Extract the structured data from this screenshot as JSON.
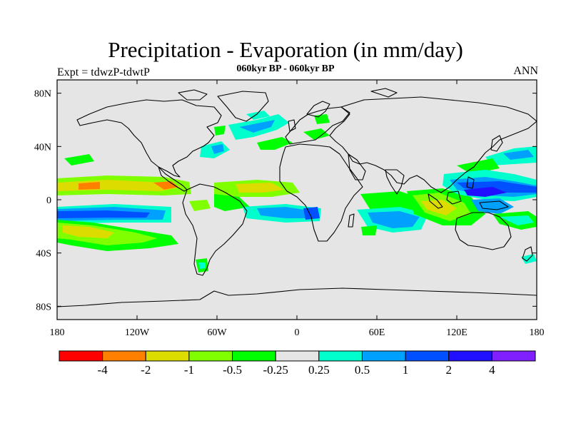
{
  "title": "Precipitation - Evaporation (in mm/day)",
  "subtitle": "060kyr BP - 060kyr BP",
  "left_string": "Expt = tdwzP-tdwtP",
  "right_string": "ANN",
  "map": {
    "projection": "cylindrical-equidistant",
    "lon_range": [
      -180,
      180
    ],
    "lat_range": [
      -90,
      90
    ],
    "background": "#e5e5e5",
    "coastline_color": "#000000"
  },
  "lat_ticks": [
    {
      "lat": 80,
      "label": "80N"
    },
    {
      "lat": 40,
      "label": "40N"
    },
    {
      "lat": 0,
      "label": "0"
    },
    {
      "lat": -40,
      "label": "40S"
    },
    {
      "lat": -80,
      "label": "80S"
    }
  ],
  "lon_ticks": [
    {
      "lon": -180,
      "label": "180"
    },
    {
      "lon": -120,
      "label": "120W"
    },
    {
      "lon": -60,
      "label": "60W"
    },
    {
      "lon": 0,
      "label": "0"
    },
    {
      "lon": 60,
      "label": "60E"
    },
    {
      "lon": 120,
      "label": "120E"
    },
    {
      "lon": 180,
      "label": "180"
    }
  ],
  "colorbar": {
    "colors": [
      "#ff0000",
      "#ff7f00",
      "#dcdc00",
      "#80ff00",
      "#00ff00",
      "#e5e5e5",
      "#00ffcc",
      "#00a0ff",
      "#0050ff",
      "#2010ff",
      "#8020ff"
    ],
    "labels": [
      "-4",
      "-2",
      "-1",
      "-0.5",
      "-0.25",
      "0.25",
      "0.5",
      "1",
      "2",
      "4"
    ]
  },
  "color_key": {
    "-4": "#ff0000",
    "-2": "#ff7f00",
    "-1": "#dcdc00",
    "-0.5": "#80ff00",
    "-0.25": "#00ff00",
    "0.25": "#00ffcc",
    "0.5": "#00a0ff",
    "1": "#0050ff",
    "2": "#2010ff"
  },
  "anomaly_regions": [
    {
      "id": "west-pacific-warm-pool",
      "level": "2",
      "lon": 140,
      "lat": 3
    },
    {
      "id": "south-pacific-wet-band",
      "level": "1",
      "lon": -150,
      "lat": -8
    },
    {
      "id": "north-pacific-dry-band",
      "level": "-1",
      "lon": -140,
      "lat": 8
    },
    {
      "id": "south-pacific-dry-tongue",
      "level": "-0.5",
      "lon": -150,
      "lat": -25
    },
    {
      "id": "tropical-atlantic-dry",
      "level": "-1",
      "lon": -40,
      "lat": 8
    },
    {
      "id": "equatorial-atlantic-wet",
      "level": "0.5",
      "lon": -30,
      "lat": -8
    },
    {
      "id": "indian-ocean-wet",
      "level": "1",
      "lon": 70,
      "lat": -12
    },
    {
      "id": "maritime-continent-dry",
      "level": "-1",
      "lon": 100,
      "lat": -8
    },
    {
      "id": "north-atlantic-wet",
      "level": "0.5",
      "lon": -30,
      "lat": 55
    },
    {
      "id": "north-pacific-storm-track",
      "level": "0.25",
      "lon": 165,
      "lat": 35
    }
  ]
}
